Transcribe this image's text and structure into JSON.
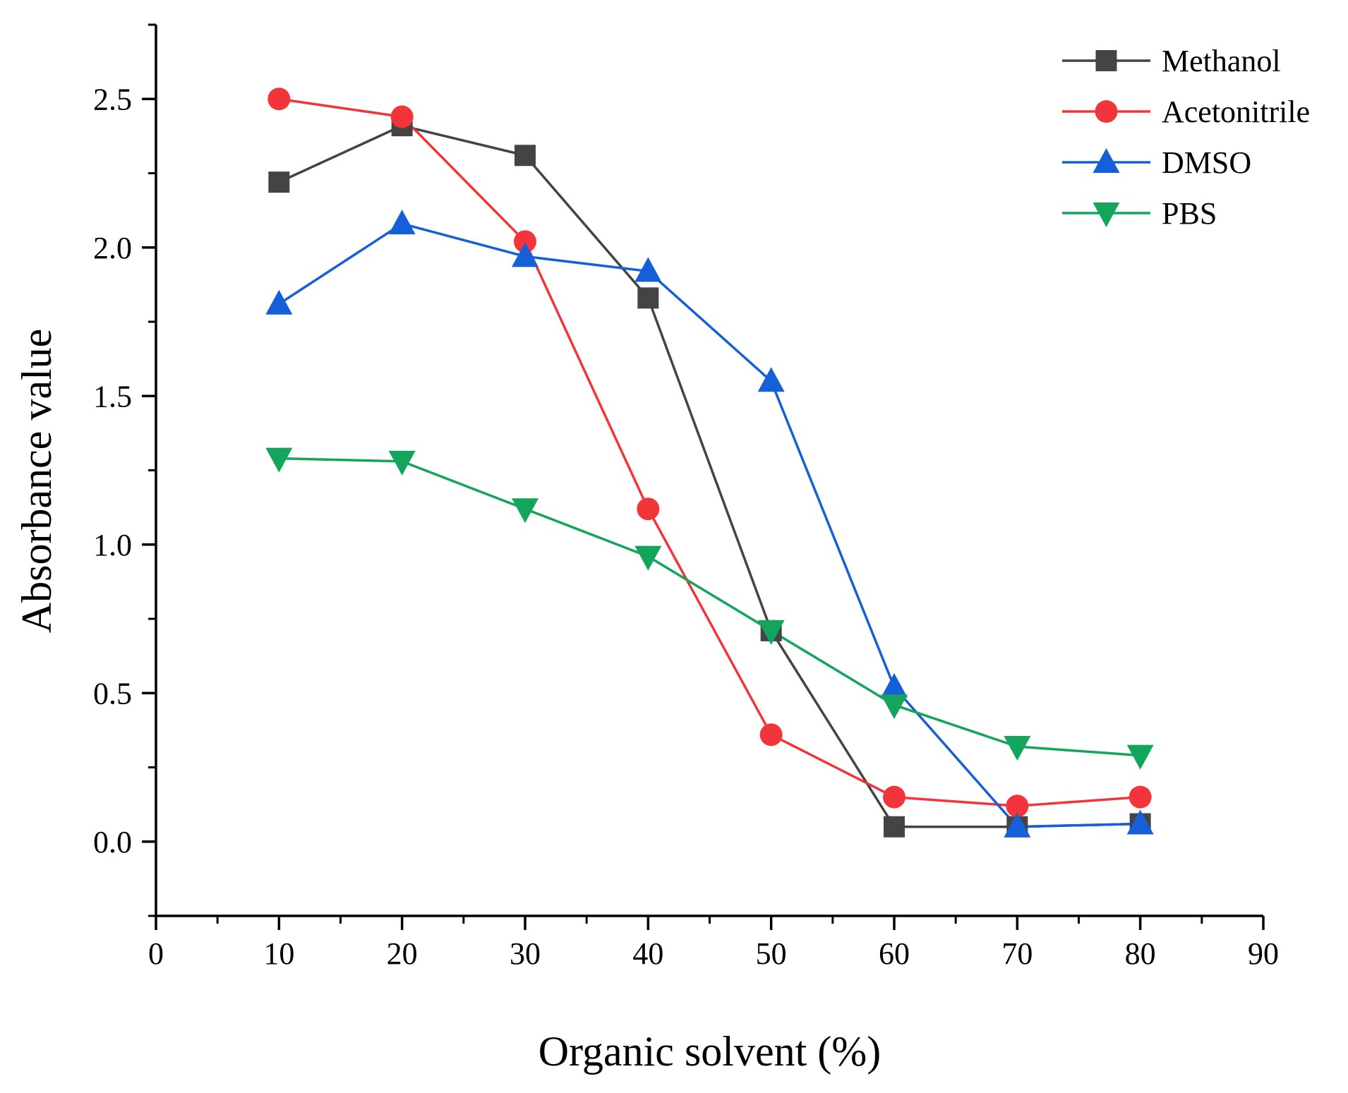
{
  "chart_data": {
    "type": "line",
    "title": "",
    "xlabel": "Organic solvent (%)",
    "ylabel": "Absorbance value",
    "xlim": [
      0,
      90
    ],
    "ylim": [
      -0.25,
      2.75
    ],
    "x_ticks": [
      "0",
      "10",
      "20",
      "30",
      "40",
      "50",
      "60",
      "70",
      "80",
      "90"
    ],
    "x_tick_values": [
      0,
      10,
      20,
      30,
      40,
      50,
      60,
      70,
      80,
      90
    ],
    "y_ticks": [
      "0.0",
      "0.5",
      "1.0",
      "1.5",
      "2.0",
      "2.5"
    ],
    "y_tick_values": [
      0.0,
      0.5,
      1.0,
      1.5,
      2.0,
      2.5
    ],
    "grid": false,
    "legend_position": "top-right",
    "x": [
      10,
      20,
      30,
      40,
      50,
      60,
      70,
      80
    ],
    "series": [
      {
        "name": "Methanol",
        "color": "#444444",
        "marker": "square",
        "values": [
          2.22,
          2.41,
          2.31,
          1.83,
          0.71,
          0.05,
          0.05,
          0.06
        ]
      },
      {
        "name": "Acetonitrile",
        "color": "#f2353a",
        "marker": "circle",
        "values": [
          2.5,
          2.44,
          2.02,
          1.12,
          0.36,
          0.15,
          0.12,
          0.15
        ]
      },
      {
        "name": "DMSO",
        "color": "#1560d8",
        "marker": "triangle-up",
        "values": [
          1.81,
          2.08,
          1.97,
          1.92,
          1.55,
          0.52,
          0.05,
          0.06
        ]
      },
      {
        "name": "PBS",
        "color": "#13a55c",
        "marker": "triangle-down",
        "values": [
          1.29,
          1.28,
          1.12,
          0.96,
          0.71,
          0.46,
          0.32,
          0.29
        ]
      }
    ]
  }
}
